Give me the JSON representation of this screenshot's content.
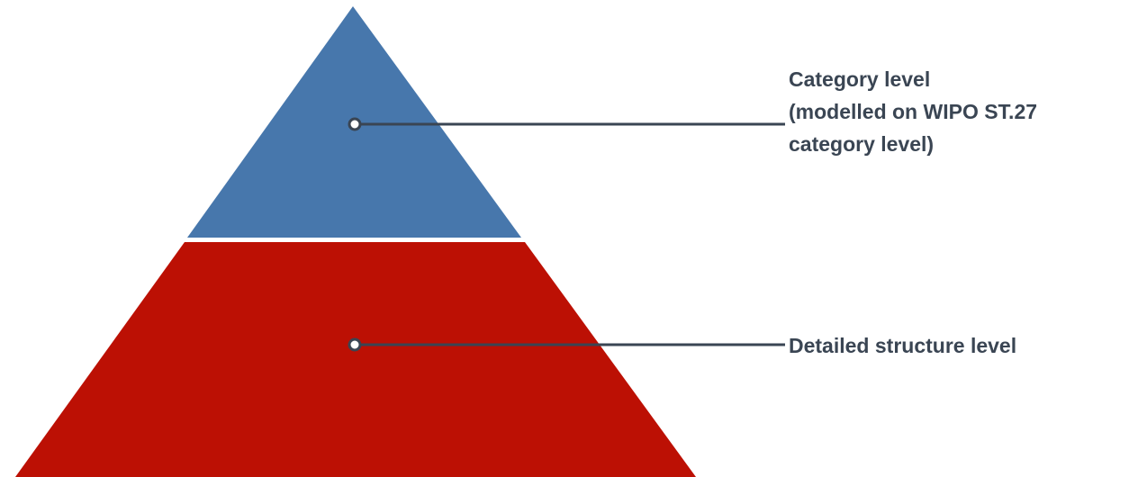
{
  "colors": {
    "top_tier": "#4777ac",
    "bottom_tier": "#bc1004",
    "connector": "#3a4553",
    "label_text": "#3a4553"
  },
  "tiers": [
    {
      "id": "category-level",
      "label_lines": [
        "Category level",
        "(modelled on WIPO ST.27",
        "category level)"
      ]
    },
    {
      "id": "detailed-structure-level",
      "label_lines": [
        "Detailed structure level"
      ]
    }
  ]
}
